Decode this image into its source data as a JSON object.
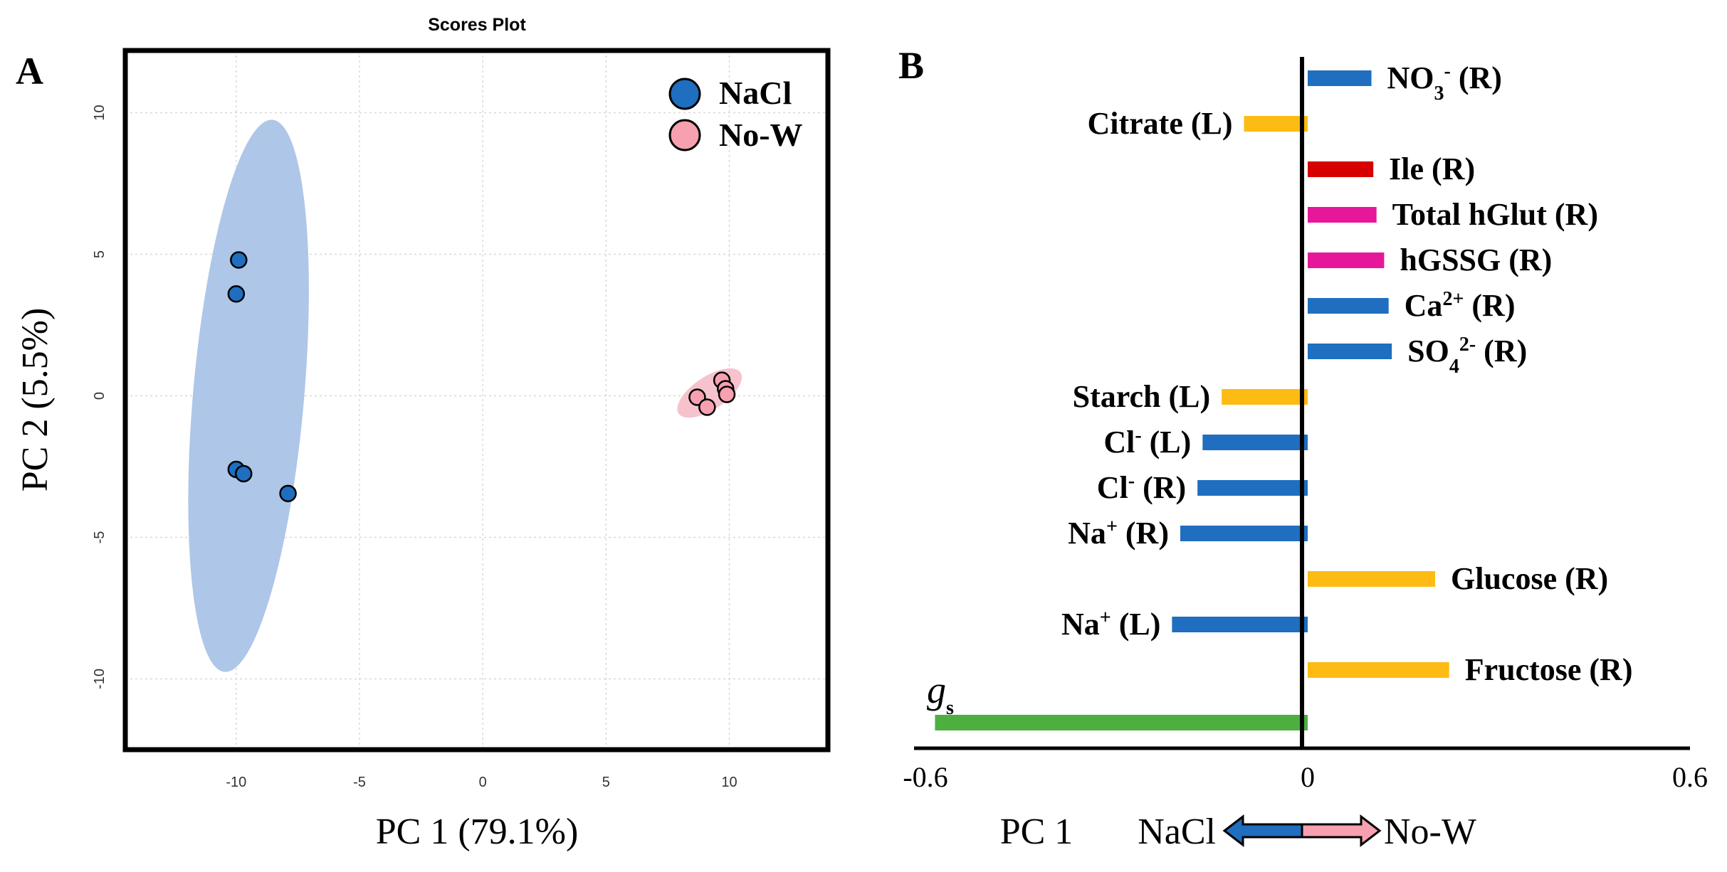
{
  "panel_a_label": "A",
  "panel_b_label": "B",
  "colors": {
    "nacl": "#1f6ebf",
    "nacl_ellipse": "#aec6e8",
    "now": "#f7a0b0",
    "now_ellipse": "#f6c3cc",
    "blue_bar": "#1f6ebf",
    "yellow_bar": "#fdbb13",
    "red_bar": "#d60000",
    "magenta_bar": "#e6179a",
    "green_bar": "#4caf40"
  },
  "chart_data": [
    {
      "type": "scatter",
      "title": "Scores Plot",
      "xlabel": "PC 1 (79.1%)",
      "ylabel": "PC 2 (5.5%)",
      "xlim": [
        -14.5,
        14
      ],
      "ylim": [
        -12.5,
        12.2
      ],
      "xticks": [
        -10,
        -5,
        0,
        5,
        10
      ],
      "yticks": [
        -10,
        -5,
        0,
        5,
        10
      ],
      "grid": true,
      "legend_position": "top-right",
      "series": [
        {
          "name": "NaCl",
          "color": "#1f6ebf",
          "points": [
            [
              -9.9,
              4.8
            ],
            [
              -10.0,
              3.6
            ],
            [
              -10.0,
              -2.6
            ],
            [
              -9.7,
              -2.75
            ],
            [
              -7.9,
              -3.45
            ]
          ],
          "ellipse": {
            "cx": -9.5,
            "cy": 0.0,
            "semi_major": 9.8,
            "semi_minor": 2.25,
            "angle_deg": 84.3
          }
        },
        {
          "name": "No-W",
          "color": "#f7a0b0",
          "points": [
            [
              8.7,
              -0.05
            ],
            [
              9.1,
              -0.4
            ],
            [
              9.7,
              0.55
            ],
            [
              9.85,
              0.25
            ],
            [
              9.9,
              0.05
            ]
          ],
          "ellipse": {
            "cx": 9.2,
            "cy": 0.1,
            "semi_major": 1.45,
            "semi_minor": 0.6,
            "angle_deg": 30
          }
        }
      ]
    },
    {
      "type": "bar",
      "orientation": "horizontal",
      "xlim": [
        -0.6,
        0.6
      ],
      "xtick_labels": [
        "-0.6",
        "0",
        "0.6"
      ],
      "xlabel": "PC 1",
      "arrow_left_label": "NaCl",
      "arrow_right_label": "No-W",
      "bars": [
        {
          "label": "NO",
          "sub": "3",
          "sup": "-",
          "suffix": " (R)",
          "value": 0.1,
          "color": "#1f6ebf"
        },
        {
          "label": "Citrate (L)",
          "sub": "",
          "sup": "",
          "suffix": "",
          "value": -0.1,
          "color": "#fdbb13"
        },
        {
          "label": "Ile (R)",
          "sub": "",
          "sup": "",
          "suffix": "",
          "value": 0.103,
          "color": "#d60000"
        },
        {
          "label": "Total hGlut (R)",
          "sub": "",
          "sup": "",
          "suffix": "",
          "value": 0.108,
          "color": "#e6179a"
        },
        {
          "label": "hGSSG (R)",
          "sub": "",
          "sup": "",
          "suffix": "",
          "value": 0.12,
          "color": "#e6179a"
        },
        {
          "label": "Ca",
          "sub": "",
          "sup": "2+",
          "suffix": " (R)",
          "value": 0.127,
          "color": "#1f6ebf"
        },
        {
          "label": "SO",
          "sub": "4",
          "sup": "2-",
          "suffix": " (R)",
          "value": 0.132,
          "color": "#1f6ebf"
        },
        {
          "label": "Starch (L)",
          "sub": "",
          "sup": "",
          "suffix": "",
          "value": -0.135,
          "color": "#fdbb13"
        },
        {
          "label": "Cl",
          "sub": "",
          "sup": "-",
          "suffix": " (L)",
          "value": -0.165,
          "color": "#1f6ebf"
        },
        {
          "label": "Cl",
          "sub": "",
          "sup": "-",
          "suffix": " (R)",
          "value": -0.173,
          "color": "#1f6ebf"
        },
        {
          "label": "Na",
          "sub": "",
          "sup": "+",
          "suffix": " (R)",
          "value": -0.2,
          "color": "#1f6ebf"
        },
        {
          "label": "Glucose (R)",
          "sub": "",
          "sup": "",
          "suffix": "",
          "value": 0.2,
          "color": "#fdbb13"
        },
        {
          "label": "Na",
          "sub": "",
          "sup": "+",
          "suffix": " (L)",
          "value": -0.213,
          "color": "#1f6ebf"
        },
        {
          "label": "Fructose (R)",
          "sub": "",
          "sup": "",
          "suffix": "",
          "value": 0.222,
          "color": "#fdbb13"
        },
        {
          "label": "g",
          "sub": "s",
          "sup": "",
          "suffix": "",
          "italic": true,
          "value": -0.585,
          "color": "#4caf40"
        }
      ]
    }
  ]
}
